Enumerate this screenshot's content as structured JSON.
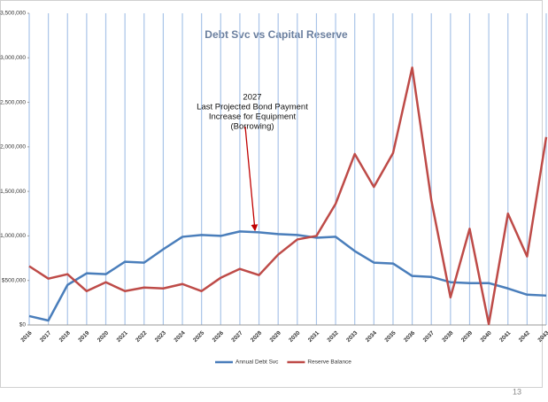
{
  "chart_data": {
    "type": "line",
    "title": "Debt Svc vs Capital Reserve",
    "categories": [
      "2016",
      "2017",
      "2018",
      "2019",
      "2020",
      "2021",
      "2022",
      "2023",
      "2024",
      "2025",
      "2026",
      "2027",
      "2028",
      "2029",
      "2030",
      "2031",
      "2032",
      "2033",
      "2034",
      "2035",
      "2036",
      "2037",
      "2038",
      "2039",
      "2040",
      "2041",
      "2042",
      "2043"
    ],
    "series": [
      {
        "name": "Annual Debt Svc",
        "color": "#4a7ebb",
        "values": [
          100000,
          50000,
          450000,
          580000,
          570000,
          710000,
          700000,
          850000,
          990000,
          1010000,
          1000000,
          1050000,
          1040000,
          1020000,
          1010000,
          980000,
          990000,
          830000,
          700000,
          690000,
          550000,
          540000,
          480000,
          470000,
          470000,
          410000,
          340000,
          330000
        ]
      },
      {
        "name": "Reserve Balance",
        "color": "#be4b48",
        "values": [
          660000,
          520000,
          570000,
          380000,
          480000,
          380000,
          420000,
          410000,
          460000,
          380000,
          530000,
          630000,
          560000,
          790000,
          960000,
          1000000,
          1360000,
          1920000,
          1550000,
          1930000,
          2890000,
          1400000,
          310000,
          1080000,
          10000,
          1250000,
          770000,
          2110000
        ]
      }
    ],
    "ylim": [
      0,
      3500000
    ],
    "yticks": [
      {
        "value": 0,
        "label": "$0"
      },
      {
        "value": 500000,
        "label": "$500,000"
      },
      {
        "value": 1000000,
        "label": "$1,000,000"
      },
      {
        "value": 1500000,
        "label": "$1,500,000"
      },
      {
        "value": 2000000,
        "label": "$2,000,000"
      },
      {
        "value": 2500000,
        "label": "$2,500,000"
      },
      {
        "value": 3000000,
        "label": "$3,000,000"
      },
      {
        "value": 3500000,
        "label": "$3,500,000"
      }
    ],
    "grid": true,
    "grid_color": "#a9c4e8",
    "annotation": [
      "2027",
      "Last Projected Bond Payment",
      "Increase for Equipment",
      "(Borrowing)"
    ],
    "legend": "bottom"
  },
  "page_number": "13"
}
